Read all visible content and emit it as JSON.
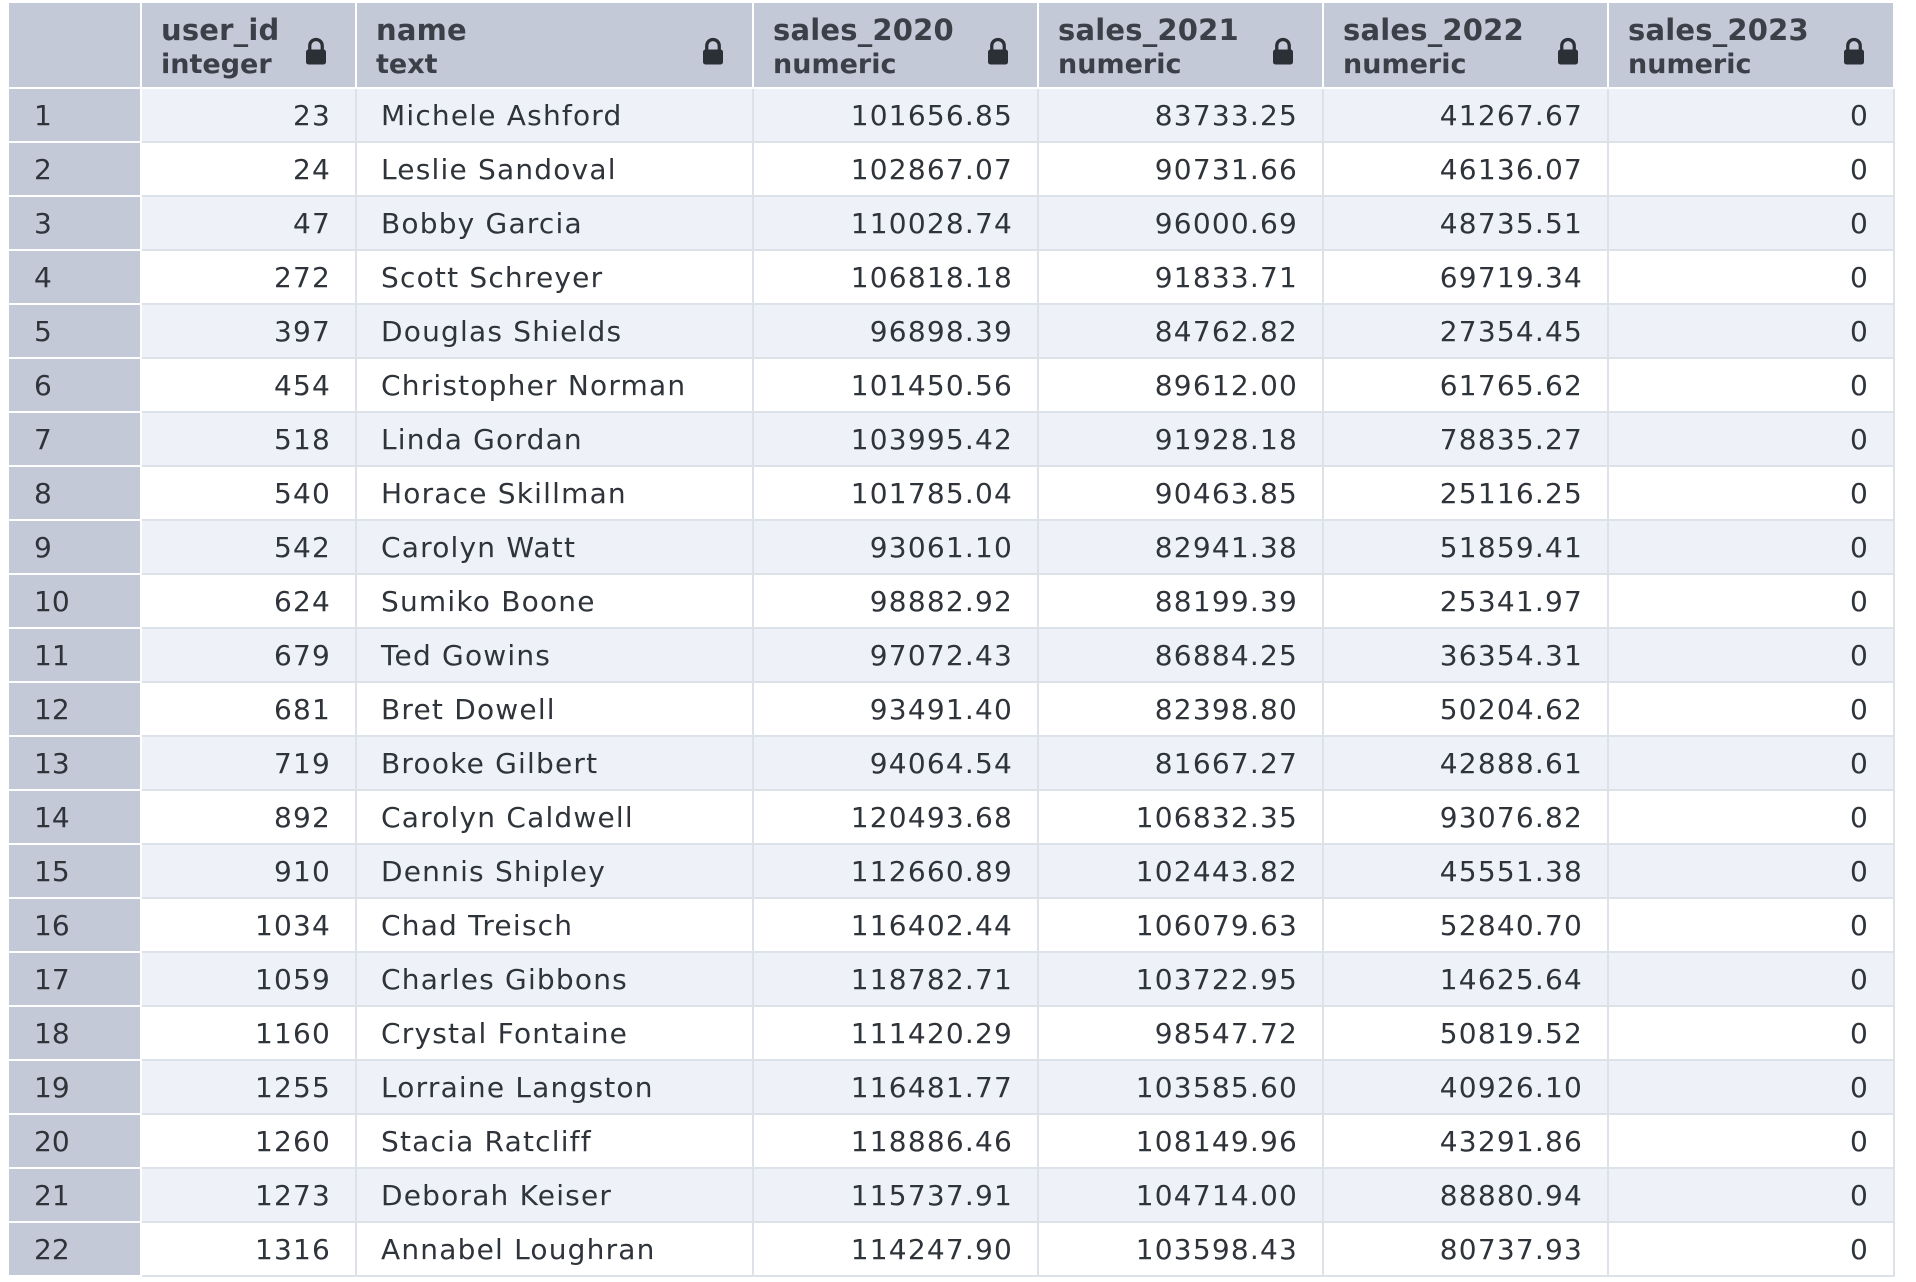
{
  "columns": [
    {
      "title": "user_id",
      "type": "integer",
      "icon": "lock-icon"
    },
    {
      "title": "name",
      "type": "text",
      "icon": "lock-icon"
    },
    {
      "title": "sales_2020",
      "type": "numeric",
      "icon": "lock-icon"
    },
    {
      "title": "sales_2021",
      "type": "numeric",
      "icon": "lock-icon"
    },
    {
      "title": "sales_2022",
      "type": "numeric",
      "icon": "lock-icon"
    },
    {
      "title": "sales_2023",
      "type": "numeric",
      "icon": "lock-icon"
    }
  ],
  "rows": [
    [
      "1",
      "23",
      "Michele Ashford",
      "101656.85",
      "83733.25",
      "41267.67",
      "0"
    ],
    [
      "2",
      "24",
      "Leslie Sandoval",
      "102867.07",
      "90731.66",
      "46136.07",
      "0"
    ],
    [
      "3",
      "47",
      "Bobby Garcia",
      "110028.74",
      "96000.69",
      "48735.51",
      "0"
    ],
    [
      "4",
      "272",
      "Scott Schreyer",
      "106818.18",
      "91833.71",
      "69719.34",
      "0"
    ],
    [
      "5",
      "397",
      "Douglas Shields",
      "96898.39",
      "84762.82",
      "27354.45",
      "0"
    ],
    [
      "6",
      "454",
      "Christopher Norman",
      "101450.56",
      "89612.00",
      "61765.62",
      "0"
    ],
    [
      "7",
      "518",
      "Linda Gordan",
      "103995.42",
      "91928.18",
      "78835.27",
      "0"
    ],
    [
      "8",
      "540",
      "Horace Skillman",
      "101785.04",
      "90463.85",
      "25116.25",
      "0"
    ],
    [
      "9",
      "542",
      "Carolyn Watt",
      "93061.10",
      "82941.38",
      "51859.41",
      "0"
    ],
    [
      "10",
      "624",
      "Sumiko Boone",
      "98882.92",
      "88199.39",
      "25341.97",
      "0"
    ],
    [
      "11",
      "679",
      "Ted Gowins",
      "97072.43",
      "86884.25",
      "36354.31",
      "0"
    ],
    [
      "12",
      "681",
      "Bret Dowell",
      "93491.40",
      "82398.80",
      "50204.62",
      "0"
    ],
    [
      "13",
      "719",
      "Brooke Gilbert",
      "94064.54",
      "81667.27",
      "42888.61",
      "0"
    ],
    [
      "14",
      "892",
      "Carolyn Caldwell",
      "120493.68",
      "106832.35",
      "93076.82",
      "0"
    ],
    [
      "15",
      "910",
      "Dennis Shipley",
      "112660.89",
      "102443.82",
      "45551.38",
      "0"
    ],
    [
      "16",
      "1034",
      "Chad Treisch",
      "116402.44",
      "106079.63",
      "52840.70",
      "0"
    ],
    [
      "17",
      "1059",
      "Charles Gibbons",
      "118782.71",
      "103722.95",
      "14625.64",
      "0"
    ],
    [
      "18",
      "1160",
      "Crystal Fontaine",
      "111420.29",
      "98547.72",
      "50819.52",
      "0"
    ],
    [
      "19",
      "1255",
      "Lorraine Langston",
      "116481.77",
      "103585.60",
      "40926.10",
      "0"
    ],
    [
      "20",
      "1260",
      "Stacia Ratcliff",
      "118886.46",
      "108149.96",
      "43291.86",
      "0"
    ],
    [
      "21",
      "1273",
      "Deborah Keiser",
      "115737.91",
      "104714.00",
      "88880.94",
      "0"
    ],
    [
      "22",
      "1316",
      "Annabel Loughran",
      "114247.90",
      "103598.43",
      "80737.93",
      "0"
    ]
  ]
}
